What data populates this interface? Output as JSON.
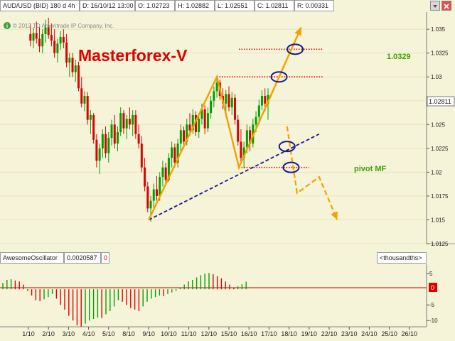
{
  "header": {
    "symbol": "AUD/USD (BID) 180 d 4h",
    "date": "D: 16/10/12 13:00",
    "open": "O: 1.02723",
    "high": "H: 1.02882",
    "low": "L: 1.02551",
    "close": "C: 1.02811",
    "range": "R: 0.00331"
  },
  "copyright": "© 2012 TD Ameritrade IP Company, Inc.",
  "watermark": "Masterforex-V",
  "annotations": {
    "target_level": "1.0329",
    "pivot_label": "pivot MF"
  },
  "current_price": "1.02811",
  "indicator": {
    "name": "AwesomeOscillator",
    "value": "0.0020587",
    "zero_flag": "0",
    "units": "<thousandths>",
    "current_tag": "0",
    "axis_labels": [
      "5",
      "0",
      "-5",
      "-10"
    ]
  },
  "colors": {
    "background": "#f5f4d8",
    "bull_candle": "#00a000",
    "bear_candle": "#e00000",
    "pattern_line": "#f5a000",
    "trend_line": "#1a1a8a",
    "level_line": "#e00000",
    "highlight_ring": "#1a1a8a",
    "watermark": "#e00000",
    "annotation": "#40a000"
  },
  "chart_data": {
    "type": "candlestick",
    "timeframe": "4h",
    "x_tick_labels": [
      "1/10",
      "2/10",
      "3/10",
      "4/10",
      "5/10",
      "8/10",
      "9/10",
      "10/10",
      "11/10",
      "12/10",
      "15/10",
      "16/10",
      "17/10",
      "18/10",
      "19/10",
      "22/10",
      "23/10",
      "24/10",
      "25/10",
      "26/10"
    ],
    "y_tick_labels": [
      "1.035",
      "1.0325",
      "1.03",
      "1.0275",
      "1.025",
      "1.0225",
      "1.02",
      "1.0175",
      "1.015",
      "1.0125"
    ],
    "ylim": [
      1.0125,
      1.0368
    ],
    "candles": [
      {
        "d": 0.1,
        "o": 1.0345,
        "h": 1.0356,
        "l": 1.0332,
        "c": 1.0338
      },
      {
        "d": 0.25,
        "o": 1.0338,
        "h": 1.0352,
        "l": 1.033,
        "c": 1.0346
      },
      {
        "d": 0.4,
        "o": 1.0346,
        "h": 1.0358,
        "l": 1.0335,
        "c": 1.034
      },
      {
        "d": 0.55,
        "o": 1.034,
        "h": 1.0352,
        "l": 1.0326,
        "c": 1.0332
      },
      {
        "d": 0.7,
        "o": 1.0332,
        "h": 1.035,
        "l": 1.0325,
        "c": 1.0345
      },
      {
        "d": 0.85,
        "o": 1.0345,
        "h": 1.036,
        "l": 1.0336,
        "c": 1.0352
      },
      {
        "d": 1.0,
        "o": 1.0352,
        "h": 1.0362,
        "l": 1.034,
        "c": 1.0344
      },
      {
        "d": 1.15,
        "o": 1.0344,
        "h": 1.0356,
        "l": 1.0332,
        "c": 1.0338
      },
      {
        "d": 1.3,
        "o": 1.0338,
        "h": 1.035,
        "l": 1.032,
        "c": 1.0325
      },
      {
        "d": 1.45,
        "o": 1.0325,
        "h": 1.034,
        "l": 1.0315,
        "c": 1.0335
      },
      {
        "d": 1.6,
        "o": 1.0335,
        "h": 1.0348,
        "l": 1.0328,
        "c": 1.0342
      },
      {
        "d": 1.75,
        "o": 1.0342,
        "h": 1.035,
        "l": 1.033,
        "c": 1.0336
      },
      {
        "d": 1.9,
        "o": 1.0336,
        "h": 1.0345,
        "l": 1.031,
        "c": 1.0315
      },
      {
        "d": 2.05,
        "o": 1.0315,
        "h": 1.0325,
        "l": 1.03,
        "c": 1.032
      },
      {
        "d": 2.2,
        "o": 1.032,
        "h": 1.0325,
        "l": 1.03,
        "c": 1.0305
      },
      {
        "d": 2.35,
        "o": 1.0305,
        "h": 1.0318,
        "l": 1.0295,
        "c": 1.0312
      },
      {
        "d": 2.5,
        "o": 1.0312,
        "h": 1.0316,
        "l": 1.0285,
        "c": 1.0288
      },
      {
        "d": 2.65,
        "o": 1.0288,
        "h": 1.03,
        "l": 1.0268,
        "c": 1.0272
      },
      {
        "d": 2.8,
        "o": 1.0272,
        "h": 1.0285,
        "l": 1.0264,
        "c": 1.028
      },
      {
        "d": 2.95,
        "o": 1.028,
        "h": 1.0284,
        "l": 1.025,
        "c": 1.0255
      },
      {
        "d": 3.1,
        "o": 1.0255,
        "h": 1.0265,
        "l": 1.024,
        "c": 1.026
      },
      {
        "d": 3.25,
        "o": 1.026,
        "h": 1.0262,
        "l": 1.023,
        "c": 1.0234
      },
      {
        "d": 3.4,
        "o": 1.0234,
        "h": 1.024,
        "l": 1.0205,
        "c": 1.0212
      },
      {
        "d": 3.55,
        "o": 1.0212,
        "h": 1.023,
        "l": 1.0198,
        "c": 1.0225
      },
      {
        "d": 3.7,
        "o": 1.0225,
        "h": 1.0245,
        "l": 1.0215,
        "c": 1.024
      },
      {
        "d": 3.85,
        "o": 1.024,
        "h": 1.0248,
        "l": 1.0215,
        "c": 1.022
      },
      {
        "d": 4.0,
        "o": 1.022,
        "h": 1.0242,
        "l": 1.021,
        "c": 1.0236
      },
      {
        "d": 4.15,
        "o": 1.0236,
        "h": 1.0255,
        "l": 1.0228,
        "c": 1.025
      },
      {
        "d": 4.3,
        "o": 1.025,
        "h": 1.026,
        "l": 1.0225,
        "c": 1.023
      },
      {
        "d": 4.45,
        "o": 1.023,
        "h": 1.0248,
        "l": 1.0222,
        "c": 1.0242
      },
      {
        "d": 4.6,
        "o": 1.0242,
        "h": 1.0268,
        "l": 1.0238,
        "c": 1.0262
      },
      {
        "d": 4.75,
        "o": 1.0262,
        "h": 1.0265,
        "l": 1.024,
        "c": 1.0246
      },
      {
        "d": 4.9,
        "o": 1.0246,
        "h": 1.026,
        "l": 1.0235,
        "c": 1.0256
      },
      {
        "d": 5.05,
        "o": 1.0256,
        "h": 1.0268,
        "l": 1.0245,
        "c": 1.025
      },
      {
        "d": 5.2,
        "o": 1.025,
        "h": 1.0265,
        "l": 1.0238,
        "c": 1.026
      },
      {
        "d": 5.35,
        "o": 1.026,
        "h": 1.0265,
        "l": 1.0235,
        "c": 1.024
      },
      {
        "d": 5.5,
        "o": 1.024,
        "h": 1.025,
        "l": 1.0225,
        "c": 1.023
      },
      {
        "d": 5.65,
        "o": 1.023,
        "h": 1.0238,
        "l": 1.02,
        "c": 1.0205
      },
      {
        "d": 5.8,
        "o": 1.0205,
        "h": 1.0215,
        "l": 1.018,
        "c": 1.0185
      },
      {
        "d": 5.95,
        "o": 1.0185,
        "h": 1.019,
        "l": 1.0158,
        "c": 1.0162
      },
      {
        "d": 6.1,
        "o": 1.0162,
        "h": 1.0175,
        "l": 1.0148,
        "c": 1.017
      },
      {
        "d": 6.25,
        "o": 1.017,
        "h": 1.0188,
        "l": 1.0162,
        "c": 1.0182
      },
      {
        "d": 6.4,
        "o": 1.0182,
        "h": 1.0196,
        "l": 1.017,
        "c": 1.0175
      },
      {
        "d": 6.55,
        "o": 1.0175,
        "h": 1.02,
        "l": 1.017,
        "c": 1.0195
      },
      {
        "d": 6.7,
        "o": 1.0195,
        "h": 1.0212,
        "l": 1.0185,
        "c": 1.0205
      },
      {
        "d": 6.85,
        "o": 1.0205,
        "h": 1.021,
        "l": 1.0188,
        "c": 1.0192
      },
      {
        "d": 7.0,
        "o": 1.0192,
        "h": 1.022,
        "l": 1.019,
        "c": 1.0215
      },
      {
        "d": 7.15,
        "o": 1.0215,
        "h": 1.0232,
        "l": 1.0205,
        "c": 1.0226
      },
      {
        "d": 7.3,
        "o": 1.0226,
        "h": 1.023,
        "l": 1.0205,
        "c": 1.021
      },
      {
        "d": 7.45,
        "o": 1.021,
        "h": 1.0235,
        "l": 1.0205,
        "c": 1.023
      },
      {
        "d": 7.6,
        "o": 1.023,
        "h": 1.025,
        "l": 1.0222,
        "c": 1.0244
      },
      {
        "d": 7.75,
        "o": 1.0244,
        "h": 1.0248,
        "l": 1.0225,
        "c": 1.0232
      },
      {
        "d": 7.9,
        "o": 1.0232,
        "h": 1.0256,
        "l": 1.0228,
        "c": 1.025
      },
      {
        "d": 8.05,
        "o": 1.025,
        "h": 1.0262,
        "l": 1.0238,
        "c": 1.0244
      },
      {
        "d": 8.2,
        "o": 1.0244,
        "h": 1.0266,
        "l": 1.024,
        "c": 1.026
      },
      {
        "d": 8.35,
        "o": 1.026,
        "h": 1.0264,
        "l": 1.0238,
        "c": 1.0242
      },
      {
        "d": 8.5,
        "o": 1.0242,
        "h": 1.0262,
        "l": 1.0236,
        "c": 1.0256
      },
      {
        "d": 8.65,
        "o": 1.0256,
        "h": 1.0272,
        "l": 1.025,
        "c": 1.0266
      },
      {
        "d": 8.8,
        "o": 1.0266,
        "h": 1.027,
        "l": 1.024,
        "c": 1.0246
      },
      {
        "d": 8.95,
        "o": 1.0246,
        "h": 1.0268,
        "l": 1.0242,
        "c": 1.0262
      },
      {
        "d": 9.1,
        "o": 1.0262,
        "h": 1.028,
        "l": 1.0256,
        "c": 1.0275
      },
      {
        "d": 9.25,
        "o": 1.0275,
        "h": 1.029,
        "l": 1.0268,
        "c": 1.0285
      },
      {
        "d": 9.4,
        "o": 1.0285,
        "h": 1.03,
        "l": 1.0278,
        "c": 1.0294
      },
      {
        "d": 9.55,
        "o": 1.0294,
        "h": 1.0297,
        "l": 1.0276,
        "c": 1.028
      },
      {
        "d": 9.7,
        "o": 1.028,
        "h": 1.0288,
        "l": 1.0266,
        "c": 1.0272
      },
      {
        "d": 9.85,
        "o": 1.0272,
        "h": 1.0286,
        "l": 1.0262,
        "c": 1.0282
      },
      {
        "d": 10.0,
        "o": 1.0282,
        "h": 1.029,
        "l": 1.0264,
        "c": 1.0268
      },
      {
        "d": 10.15,
        "o": 1.0268,
        "h": 1.0284,
        "l": 1.026,
        "c": 1.0278
      },
      {
        "d": 10.3,
        "o": 1.0278,
        "h": 1.0282,
        "l": 1.025,
        "c": 1.0255
      },
      {
        "d": 10.45,
        "o": 1.0255,
        "h": 1.026,
        "l": 1.0228,
        "c": 1.0232
      },
      {
        "d": 10.6,
        "o": 1.0232,
        "h": 1.0245,
        "l": 1.021,
        "c": 1.0215
      },
      {
        "d": 10.75,
        "o": 1.0215,
        "h": 1.0232,
        "l": 1.0204,
        "c": 1.0226
      },
      {
        "d": 10.9,
        "o": 1.0226,
        "h": 1.025,
        "l": 1.022,
        "c": 1.0244
      },
      {
        "d": 11.05,
        "o": 1.0244,
        "h": 1.0248,
        "l": 1.0222,
        "c": 1.023
      },
      {
        "d": 11.2,
        "o": 1.023,
        "h": 1.0256,
        "l": 1.0226,
        "c": 1.025
      },
      {
        "d": 11.35,
        "o": 1.025,
        "h": 1.0264,
        "l": 1.0242,
        "c": 1.0258
      },
      {
        "d": 11.5,
        "o": 1.0258,
        "h": 1.0276,
        "l": 1.0252,
        "c": 1.027
      },
      {
        "d": 11.65,
        "o": 1.027,
        "h": 1.0286,
        "l": 1.0265,
        "c": 1.028
      },
      {
        "d": 11.8,
        "o": 1.028,
        "h": 1.0288,
        "l": 1.0264,
        "c": 1.0272
      },
      {
        "d": 11.95,
        "o": 1.0272,
        "h": 1.0288,
        "l": 1.0255,
        "c": 1.0281
      }
    ],
    "horizontal_levels": [
      {
        "value": 1.0329,
        "from_day": 10.5,
        "to_day": 14.7
      },
      {
        "value": 1.03,
        "from_day": 9.4,
        "to_day": 14.7
      },
      {
        "value": 1.0205,
        "from_day": 10.5,
        "to_day": 14.0
      }
    ],
    "pattern_lines": [
      {
        "points": [
          [
            6.0,
            1.015
          ],
          [
            9.4,
            1.03
          ],
          [
            10.5,
            1.0205
          ],
          [
            13.6,
            1.0352
          ]
        ]
      }
    ],
    "projection_lines": [
      {
        "points": [
          [
            12.9,
            1.0248
          ],
          [
            13.4,
            1.0178
          ],
          [
            14.5,
            1.0195
          ],
          [
            15.4,
            1.015
          ]
        ]
      }
    ],
    "trend_line": {
      "points": [
        [
          6.0,
          1.015
        ],
        [
          14.5,
          1.024
        ]
      ]
    },
    "highlight_rings": [
      {
        "day": 13.3,
        "value": 1.0329
      },
      {
        "day": 12.5,
        "value": 1.03
      },
      {
        "day": 12.9,
        "value": 1.0227
      },
      {
        "day": 13.1,
        "value": 1.0205
      }
    ],
    "oscillator": {
      "zero_line": 0,
      "ylim": [
        -12,
        8
      ],
      "bars": [
        2,
        3,
        3.2,
        2.8,
        2.5,
        1.5,
        -0.5,
        -2,
        -3.5,
        -3.8,
        -3.2,
        -2.5,
        -1.5,
        -3,
        -5,
        -6.5,
        -8.5,
        -10,
        -11.5,
        -12,
        -11,
        -10,
        -9.5,
        -9,
        -9.2,
        -8,
        -7,
        -5.5,
        -3.5,
        -4,
        -5,
        -6,
        -6.5,
        -7,
        -5.5,
        -4,
        -3,
        -2.5,
        -2,
        -2.2,
        -1.5,
        -1,
        -0.5,
        0.5,
        1.5,
        2.5,
        3,
        3.8,
        4.5,
        5,
        5.2,
        4.8,
        4.2,
        3.5,
        2.5,
        1.5,
        0.5,
        1,
        1.6,
        2.4
      ]
    }
  }
}
